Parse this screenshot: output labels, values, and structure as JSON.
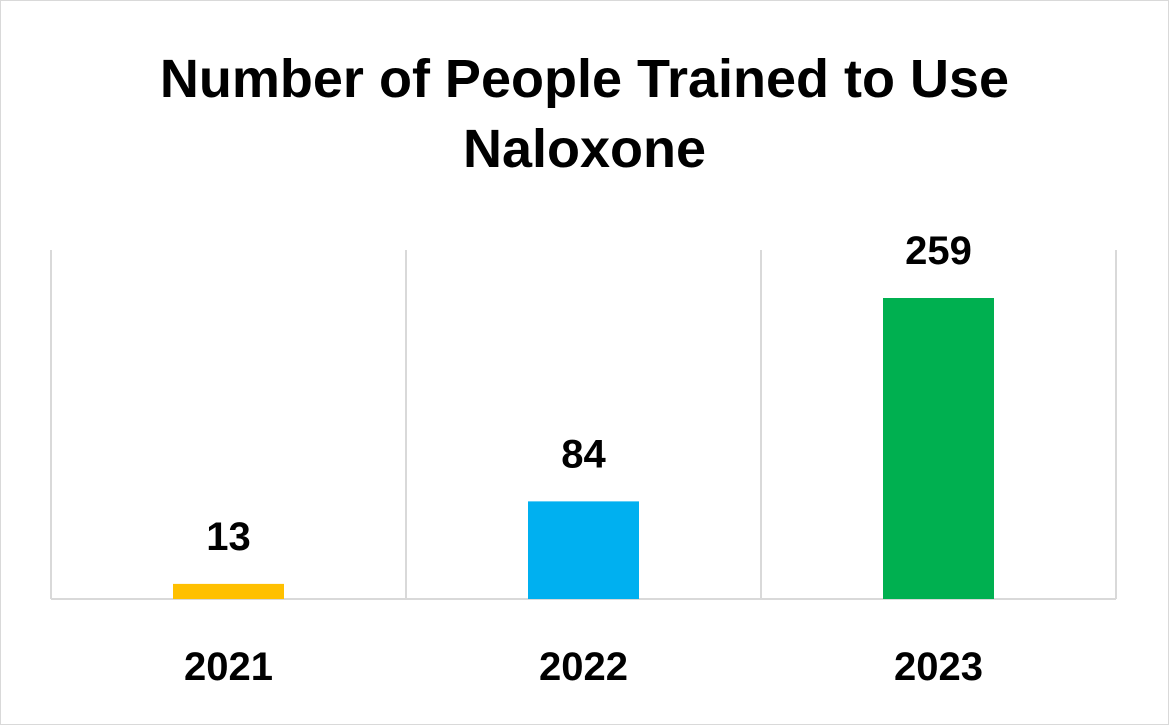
{
  "chart_data": {
    "type": "bar",
    "title": "Number of People Trained to Use Naloxone",
    "title_lines": [
      "Number of People Trained to Use",
      "Naloxone"
    ],
    "categories": [
      "2021",
      "2022",
      "2023"
    ],
    "values": [
      13,
      84,
      259
    ],
    "data_labels": [
      "13",
      "84",
      "259"
    ],
    "colors": [
      "#ffc000",
      "#00b0f0",
      "#00b050"
    ],
    "xlabel": "",
    "ylabel": "",
    "ylim": [
      0,
      259
    ],
    "grid": "vertical",
    "legend": "none"
  }
}
